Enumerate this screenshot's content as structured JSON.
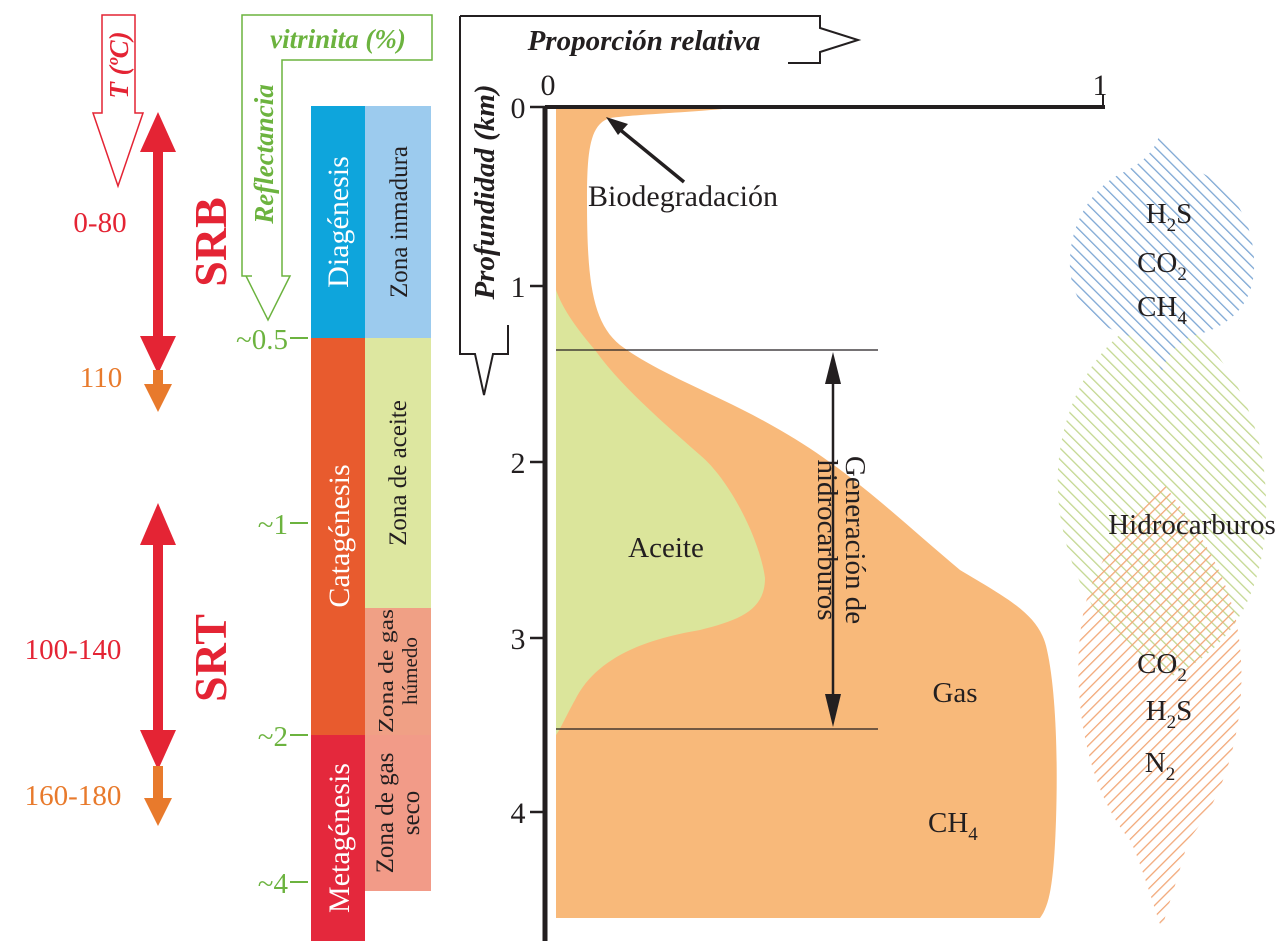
{
  "temperature": {
    "axis_title": "T (ºC)",
    "values": {
      "a": "0-80",
      "b": "110",
      "c": "100-140",
      "d": "160-180"
    },
    "windows": {
      "srb": "SRB",
      "srt": "SRT"
    }
  },
  "vitrinite": {
    "axis_title_top": "vitrinita (%)",
    "axis_title_side": "Reflectancia",
    "ticks": [
      "~0.5",
      "~1",
      "~2",
      "~4"
    ]
  },
  "stages": [
    {
      "name": "Diagénesis",
      "zone": "Zona inmadura"
    },
    {
      "name": "Catagénesis",
      "zone": "Zona de aceite"
    },
    {
      "name": "Catagénesis",
      "zone_lines": [
        "Zona de gas",
        "húmedo"
      ]
    },
    {
      "name": "Metagénesis",
      "zone_lines": [
        "Zona de gas",
        "seco"
      ]
    }
  ],
  "plot": {
    "x_title": "Proporción relativa",
    "y_title": "Profundidad (km)",
    "x_ticks": [
      "0",
      "1"
    ],
    "y_ticks": [
      "0",
      "1",
      "2",
      "3",
      "4"
    ],
    "labels": {
      "biodegradation": "Biodegradación",
      "oil": "Aceite",
      "gas": "Gas",
      "methane": "CH",
      "methane_sub": "4",
      "generation_lines": [
        "Generación de",
        "hidrocarburos"
      ]
    }
  },
  "blobs": {
    "top": [
      {
        "base": "H",
        "sub": "2",
        "rest": "S"
      },
      {
        "base": "CO",
        "sub": "2",
        "rest": ""
      },
      {
        "base": "CH",
        "sub": "4",
        "rest": ""
      }
    ],
    "middle": "Hidrocarburos",
    "bottom": [
      {
        "base": "CO",
        "sub": "2",
        "rest": ""
      },
      {
        "base": "H",
        "sub": "2",
        "rest": "S"
      },
      {
        "base": "N",
        "sub": "2",
        "rest": ""
      }
    ]
  },
  "colors": {
    "red": "#e42434",
    "orange": "#e87a2c",
    "green": "#6cb33f",
    "blue_stage": "#0ea5dc",
    "blue_zone": "#9ccbee",
    "catagenesis": "#e85b2e",
    "oil_zone": "#dde7a0",
    "wet_gas_zone": "#f0a085",
    "metagenesis": "#e4283c",
    "dry_gas_zone": "#f29b88",
    "orange_fill": "#f8b97a",
    "oil_fill": "#dbe59b"
  }
}
